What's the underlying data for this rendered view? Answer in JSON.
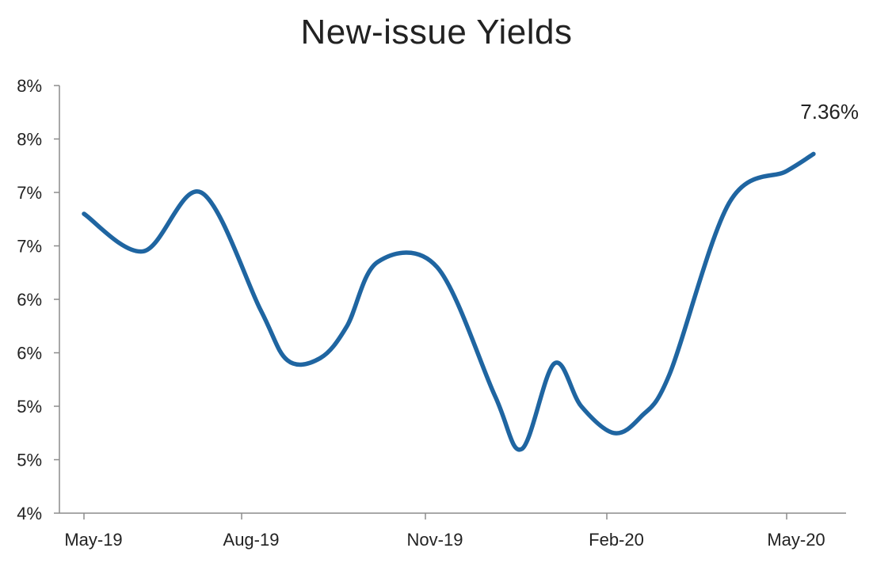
{
  "chart_data": {
    "type": "line",
    "title": "New-issue Yields",
    "xlabel": "",
    "ylabel": "",
    "y_tick_labels": [
      "8%",
      "8%",
      "7%",
      "7%",
      "6%",
      "6%",
      "5%",
      "5%",
      "4%"
    ],
    "x_tick_labels": [
      "May-19",
      "Aug-19",
      "Nov-19",
      "Feb-20",
      "May-20"
    ],
    "ylim": [
      4.0,
      8.0
    ],
    "grid": false,
    "legend": "none",
    "series_color": "#1f65a1",
    "series": [
      {
        "x": [
          "2019-05-01",
          "2019-06-01",
          "2019-07-01",
          "2019-08-01",
          "2019-08-15",
          "2019-09-01",
          "2019-09-15",
          "2019-10-01",
          "2019-11-01",
          "2019-12-01",
          "2019-12-15",
          "2020-01-01",
          "2020-01-15",
          "2020-02-01",
          "2020-02-15",
          "2020-03-01",
          "2020-04-01",
          "2020-05-01",
          "2020-05-15"
        ],
        "y": [
          6.8,
          6.45,
          7.0,
          5.9,
          5.43,
          5.45,
          5.75,
          6.35,
          6.3,
          5.1,
          4.6,
          5.4,
          5.0,
          4.75,
          4.9,
          5.3,
          6.9,
          7.2,
          7.36
        ]
      }
    ],
    "last_point_label": "7.36%"
  }
}
